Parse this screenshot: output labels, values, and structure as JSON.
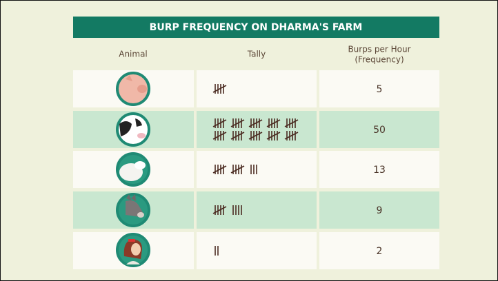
{
  "title": "BURP FREQUENCY ON DHARMA'S FARM",
  "columns": [
    "Animal",
    "Tally",
    [
      "Burps per Hour",
      "(Frequency)"
    ]
  ],
  "rows": [
    {
      "frequency": 5
    },
    {
      "frequency": 50
    },
    {
      "frequency": 13
    },
    {
      "frequency": 9
    },
    {
      "frequency": 2
    }
  ]
}
